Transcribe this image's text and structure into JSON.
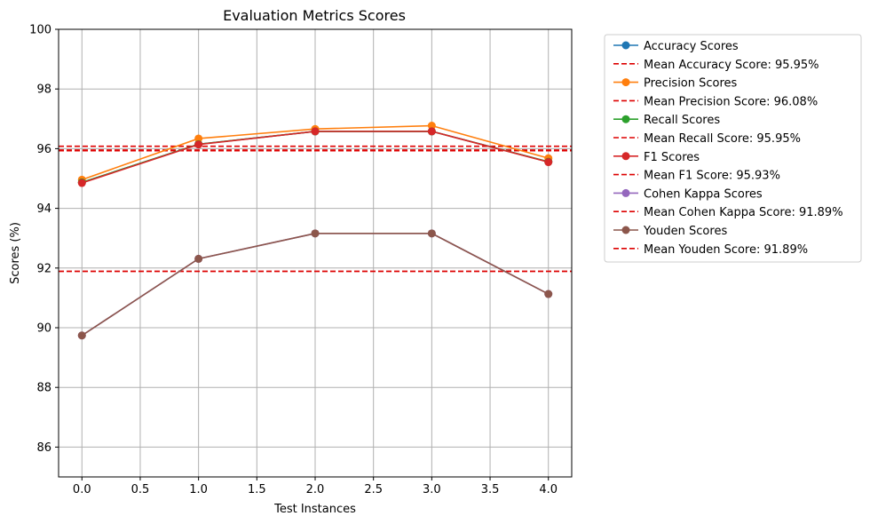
{
  "chart_data": {
    "type": "line",
    "title": "Evaluation Metrics Scores",
    "xlabel": "Test Instances",
    "ylabel": "Scores (%)",
    "xlim": [
      -0.2,
      4.2
    ],
    "ylim": [
      85,
      100
    ],
    "xticks": [
      "0.0",
      "0.5",
      "1.0",
      "1.5",
      "2.0",
      "2.5",
      "3.0",
      "3.5",
      "4.0"
    ],
    "yticks": [
      "86",
      "88",
      "90",
      "92",
      "94",
      "96",
      "98",
      "100"
    ],
    "grid": true,
    "legend_position": "outside-right",
    "x": [
      0,
      1,
      2,
      3,
      4
    ],
    "series": [
      {
        "name": "Accuracy Scores",
        "color": "#1f77b4",
        "values": [
          94.87,
          96.15,
          96.58,
          96.58,
          95.56
        ]
      },
      {
        "name": "Precision Scores",
        "color": "#ff7f0e",
        "values": [
          94.96,
          96.34,
          96.66,
          96.77,
          95.68
        ]
      },
      {
        "name": "Recall Scores",
        "color": "#2ca02c",
        "values": [
          94.87,
          96.15,
          96.58,
          96.58,
          95.56
        ]
      },
      {
        "name": "F1 Scores",
        "color": "#d62728",
        "values": [
          94.85,
          96.14,
          96.58,
          96.58,
          95.55
        ]
      },
      {
        "name": "Cohen Kappa Scores",
        "color": "#9467bd",
        "values": [
          89.74,
          92.31,
          93.16,
          93.16,
          91.13
        ]
      },
      {
        "name": "Youden Scores",
        "color": "#8c564b",
        "values": [
          89.74,
          92.31,
          93.16,
          93.16,
          91.13
        ]
      }
    ],
    "mean_lines": [
      {
        "name": "Mean Accuracy Score: 95.95%",
        "value": 95.95,
        "color": "#dd0000"
      },
      {
        "name": "Mean Precision Score: 96.08%",
        "value": 96.08,
        "color": "#dd0000"
      },
      {
        "name": "Mean Recall Score: 95.95%",
        "value": 95.95,
        "color": "#dd0000"
      },
      {
        "name": "Mean F1 Score: 95.93%",
        "value": 95.93,
        "color": "#dd0000"
      },
      {
        "name": "Mean Cohen Kappa Score: 91.89%",
        "value": 91.89,
        "color": "#dd0000"
      },
      {
        "name": "Mean Youden Score: 91.89%",
        "value": 91.89,
        "color": "#dd0000"
      }
    ],
    "legend": [
      {
        "label": "Accuracy Scores",
        "kind": "line",
        "color": "#1f77b4"
      },
      {
        "label": "Mean Accuracy Score: 95.95%",
        "kind": "dash",
        "color": "#dd0000"
      },
      {
        "label": "Precision Scores",
        "kind": "line",
        "color": "#ff7f0e"
      },
      {
        "label": "Mean Precision Score: 96.08%",
        "kind": "dash",
        "color": "#dd0000"
      },
      {
        "label": "Recall Scores",
        "kind": "line",
        "color": "#2ca02c"
      },
      {
        "label": "Mean Recall Score: 95.95%",
        "kind": "dash",
        "color": "#dd0000"
      },
      {
        "label": "F1 Scores",
        "kind": "line",
        "color": "#d62728"
      },
      {
        "label": "Mean F1 Score: 95.93%",
        "kind": "dash",
        "color": "#dd0000"
      },
      {
        "label": "Cohen Kappa Scores",
        "kind": "line",
        "color": "#9467bd"
      },
      {
        "label": "Mean Cohen Kappa Score: 91.89%",
        "kind": "dash",
        "color": "#dd0000"
      },
      {
        "label": "Youden Scores",
        "kind": "line",
        "color": "#8c564b"
      },
      {
        "label": "Mean Youden Score: 91.89%",
        "kind": "dash",
        "color": "#dd0000"
      }
    ]
  }
}
